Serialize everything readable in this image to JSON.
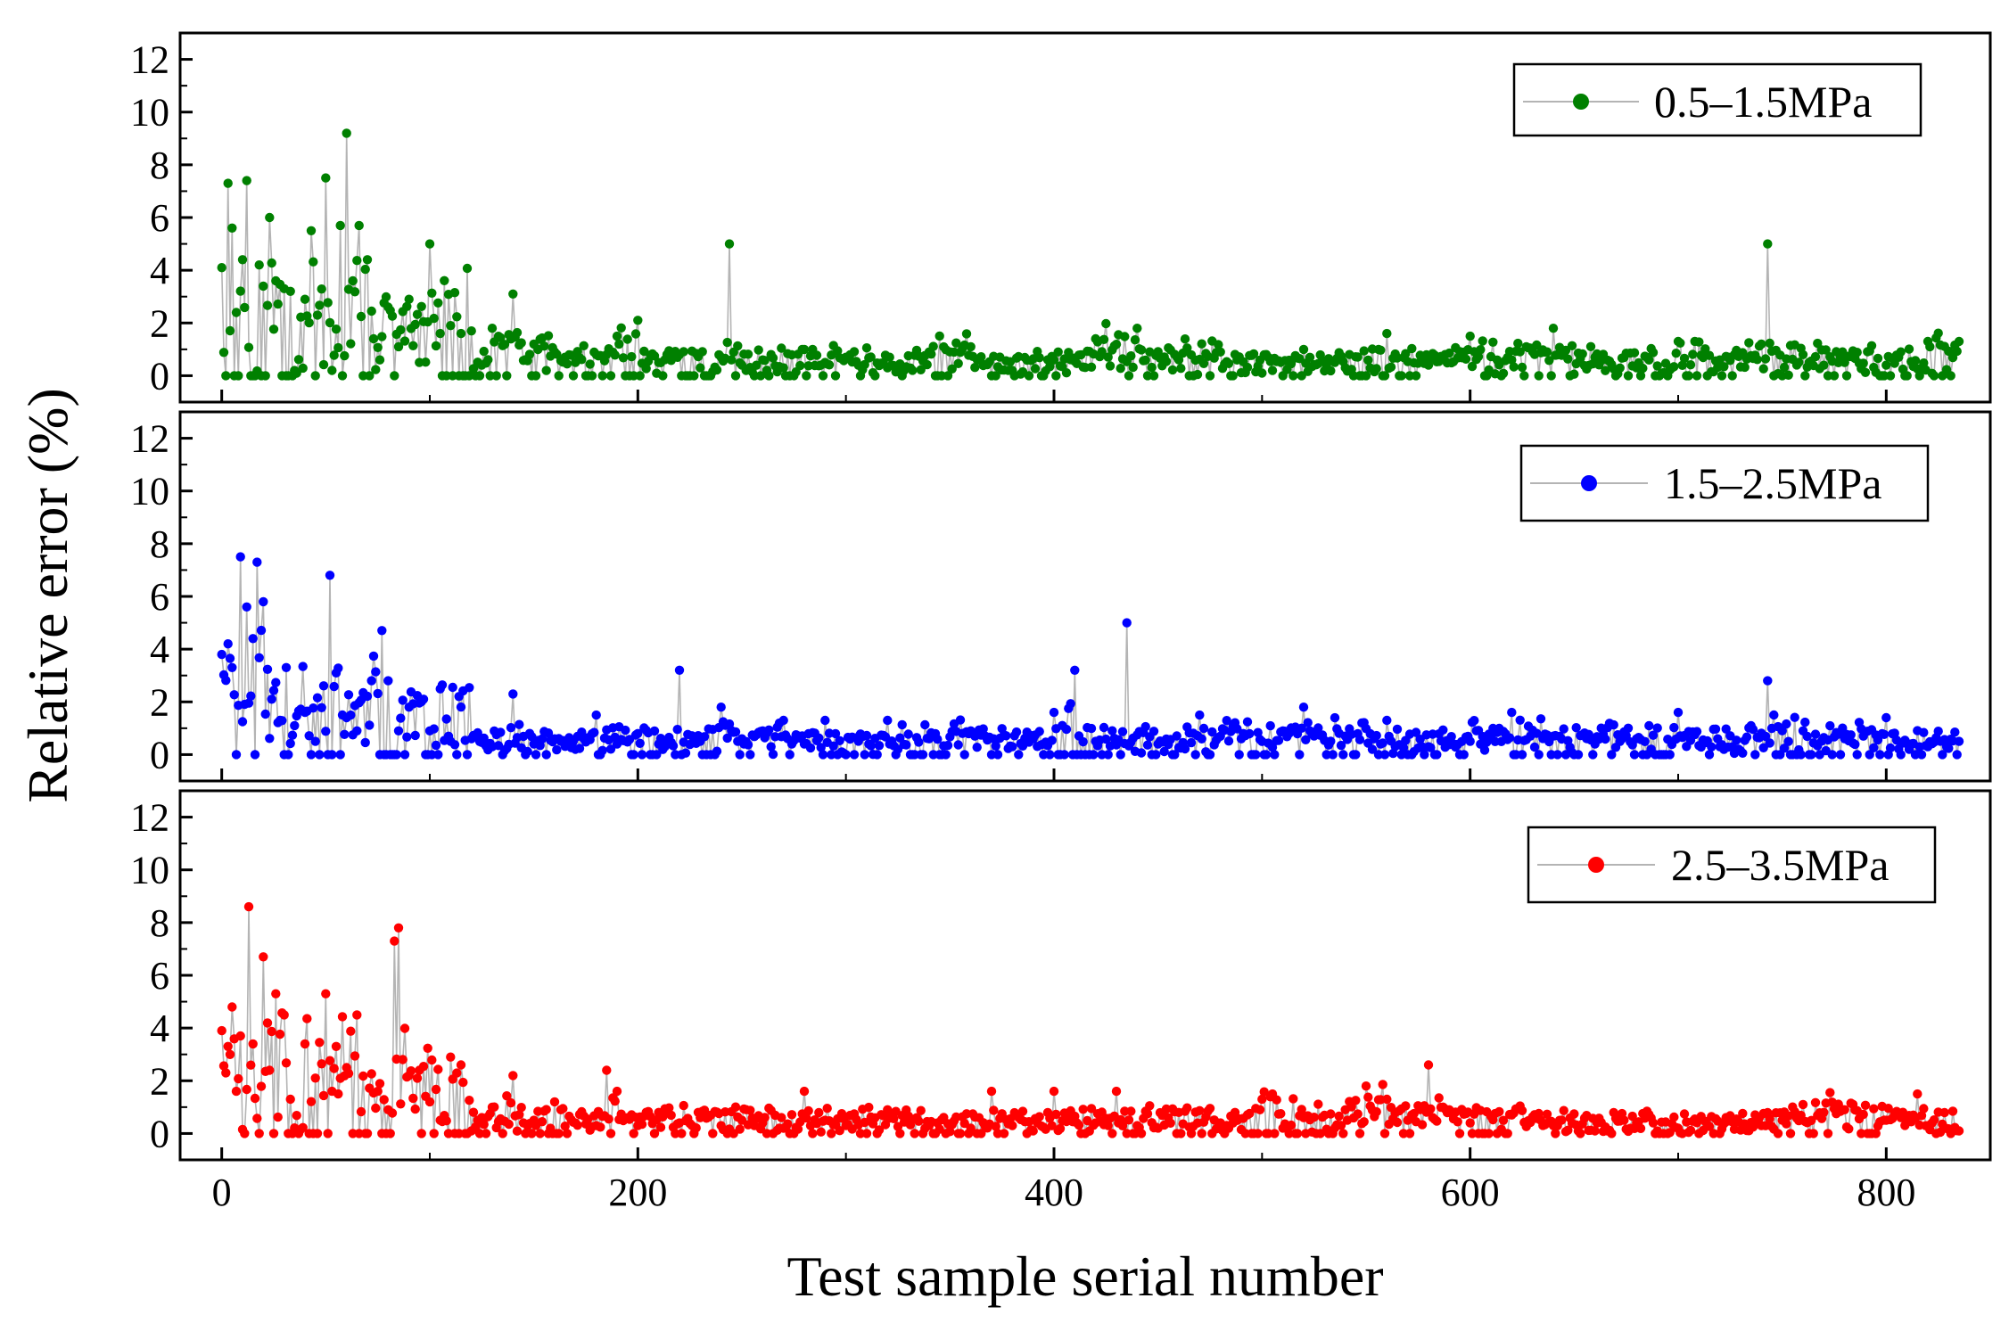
{
  "figure": {
    "ylabel": "Relative error (%)",
    "xlabel": "Test sample serial number"
  },
  "chart_data": [
    {
      "type": "scatter",
      "title": "",
      "series": [
        {
          "name": "0.5–1.5MPa",
          "color": "#008000",
          "line_color": "#b4b4b4",
          "x": [
            0,
            3,
            5,
            7,
            10,
            12,
            15,
            18,
            20,
            23,
            26,
            30,
            33,
            36,
            40,
            43,
            46,
            50,
            53,
            57,
            60,
            63,
            66,
            70,
            73,
            76,
            80,
            85,
            90,
            95,
            100,
            105,
            110,
            115,
            120,
            125,
            130,
            140,
            150,
            160,
            170,
            180,
            190,
            200,
            210,
            220,
            230,
            240,
            244,
            250,
            260,
            270,
            280,
            290,
            300,
            320,
            340,
            360,
            380,
            400,
            420,
            440,
            460,
            480,
            500,
            520,
            540,
            560,
            580,
            600,
            620,
            640,
            660,
            680,
            700,
            720,
            740,
            743,
            760,
            780,
            800,
            820,
            835
          ],
          "y": [
            4.1,
            7.3,
            5.6,
            2.4,
            4.4,
            7.4,
            0.0,
            4.2,
            3.4,
            6.0,
            3.6,
            3.3,
            3.2,
            0.1,
            2.9,
            5.5,
            2.3,
            7.5,
            0.2,
            5.7,
            9.2,
            3.6,
            5.7,
            4.4,
            1.4,
            0.6,
            2.6,
            1.1,
            2.9,
            0.5,
            5.0,
            1.6,
            1.9,
            1.6,
            1.7,
            0.4,
            1.8,
            3.1,
            1.2,
            0.9,
            0.5,
            0.8,
            1.5,
            2.1,
            0.5,
            0.8,
            0.3,
            0.7,
            5.0,
            0.4,
            0.6,
            0.3,
            1.0,
            0.5,
            0.7,
            0.3,
            0.9,
            1.1,
            0.2,
            0.6,
            1.4,
            1.8,
            0.6,
            0.9,
            0.1,
            1.0,
            0.3,
            1.6,
            0.4,
            1.5,
            0.6,
            1.8,
            0.7,
            0.3,
            1.3,
            0.6,
            1.2,
            5.0,
            0.8,
            0.5,
            0.4,
            1.3,
            1.3
          ]
        }
      ],
      "xlim": [
        -20,
        850
      ],
      "ylim": [
        -1,
        13
      ],
      "yticks": [
        "0",
        "2",
        "4",
        "6",
        "8",
        "10",
        "12"
      ],
      "legend": "top-right"
    },
    {
      "type": "scatter",
      "title": "",
      "series": [
        {
          "name": "1.5–2.5MPa",
          "color": "#0000ff",
          "line_color": "#b4b4b4",
          "x": [
            0,
            3,
            5,
            7,
            9,
            12,
            15,
            17,
            20,
            24,
            28,
            31,
            35,
            40,
            45,
            52,
            55,
            60,
            65,
            72,
            80,
            85,
            90,
            100,
            110,
            120,
            130,
            140,
            150,
            160,
            170,
            180,
            190,
            200,
            210,
            220,
            230,
            240,
            250,
            260,
            270,
            280,
            290,
            300,
            320,
            340,
            360,
            380,
            400,
            410,
            420,
            435,
            450,
            470,
            490,
            510,
            520,
            540,
            560,
            580,
            600,
            620,
            640,
            660,
            680,
            700,
            720,
            743,
            760,
            780,
            800,
            820,
            835
          ],
          "y": [
            3.8,
            4.2,
            3.3,
            0.0,
            7.5,
            5.6,
            4.4,
            7.3,
            5.8,
            2.1,
            1.3,
            3.3,
            1.1,
            1.6,
            0.5,
            6.8,
            3.1,
            1.4,
            0.9,
            2.8,
            2.8,
            0.9,
            1.8,
            0.9,
            0.5,
            0.6,
            0.3,
            2.3,
            0.4,
            0.6,
            0.2,
            1.5,
            0.4,
            0.8,
            0.4,
            3.2,
            0.5,
            1.8,
            0.6,
            0.9,
            1.3,
            0.4,
            1.3,
            0.0,
            1.3,
            0.6,
            0.9,
            0.3,
            1.6,
            3.2,
            0.5,
            5.0,
            0.4,
            1.5,
            0.6,
            0.9,
            1.8,
            0.7,
            1.3,
            0.3,
            0.5,
            1.6,
            0.7,
            0.4,
            0.6,
            1.6,
            0.3,
            2.8,
            0.9,
            0.6,
            1.4,
            0.3,
            0.5
          ]
        }
      ],
      "xlim": [
        -20,
        850
      ],
      "ylim": [
        -1,
        13
      ],
      "yticks": [
        "0",
        "2",
        "4",
        "6",
        "8",
        "10",
        "12"
      ],
      "legend": "top-right"
    },
    {
      "type": "scatter",
      "title": "",
      "series": [
        {
          "name": "2.5–3.5MPa",
          "color": "#ff0000",
          "line_color": "#b4b4b4",
          "x": [
            0,
            3,
            5,
            7,
            9,
            11,
            13,
            15,
            18,
            20,
            23,
            26,
            30,
            33,
            37,
            40,
            45,
            50,
            55,
            60,
            65,
            70,
            75,
            80,
            83,
            85,
            90,
            95,
            100,
            105,
            110,
            115,
            120,
            130,
            140,
            145,
            150,
            160,
            170,
            180,
            185,
            190,
            195,
            200,
            210,
            220,
            230,
            240,
            250,
            260,
            270,
            280,
            290,
            300,
            320,
            340,
            360,
            370,
            380,
            390,
            400,
            420,
            430,
            440,
            460,
            480,
            500,
            505,
            520,
            540,
            550,
            560,
            570,
            580,
            590,
            600,
            620,
            640,
            660,
            680,
            700,
            720,
            740,
            750,
            760,
            770,
            780,
            800,
            815,
            820,
            835
          ],
          "y": [
            3.9,
            3.3,
            4.8,
            1.6,
            3.7,
            0.0,
            8.6,
            3.4,
            0.0,
            6.7,
            2.4,
            5.3,
            4.5,
            1.3,
            0.0,
            3.4,
            2.1,
            5.3,
            3.3,
            2.5,
            4.5,
            0.0,
            1.6,
            0.9,
            7.3,
            7.8,
            2.2,
            2.4,
            1.2,
            0.5,
            2.9,
            2.6,
            0.1,
            1.0,
            2.2,
            0.4,
            0.5,
            1.2,
            0.4,
            0.3,
            2.4,
            1.6,
            0.6,
            0.3,
            0.8,
            0.4,
            0.6,
            0.3,
            0.5,
            0.4,
            0.2,
            1.6,
            0.5,
            0.3,
            0.9,
            0.3,
            0.2,
            1.6,
            0.3,
            0.1,
            1.6,
            0.4,
            1.6,
            0.3,
            0.8,
            0.4,
            1.3,
            1.5,
            0.6,
            0.9,
            1.8,
            1.3,
            0.5,
            2.6,
            0.9,
            0.4,
            0.7,
            0.3,
            0.1,
            0.4,
            0.2,
            0.0,
            0.3,
            0.5,
            1.1,
            0.8,
            0.9,
            0.5,
            1.5,
            0.3,
            0.1
          ]
        }
      ],
      "xlim": [
        -20,
        850
      ],
      "ylim": [
        -1,
        13
      ],
      "yticks": [
        "0",
        "2",
        "4",
        "6",
        "8",
        "10",
        "12"
      ],
      "legend": "top-right"
    }
  ],
  "x_axis": {
    "ticks": [
      0,
      200,
      400,
      600,
      800
    ],
    "tick_labels": [
      "0",
      "200",
      "400",
      "600",
      "800"
    ]
  }
}
